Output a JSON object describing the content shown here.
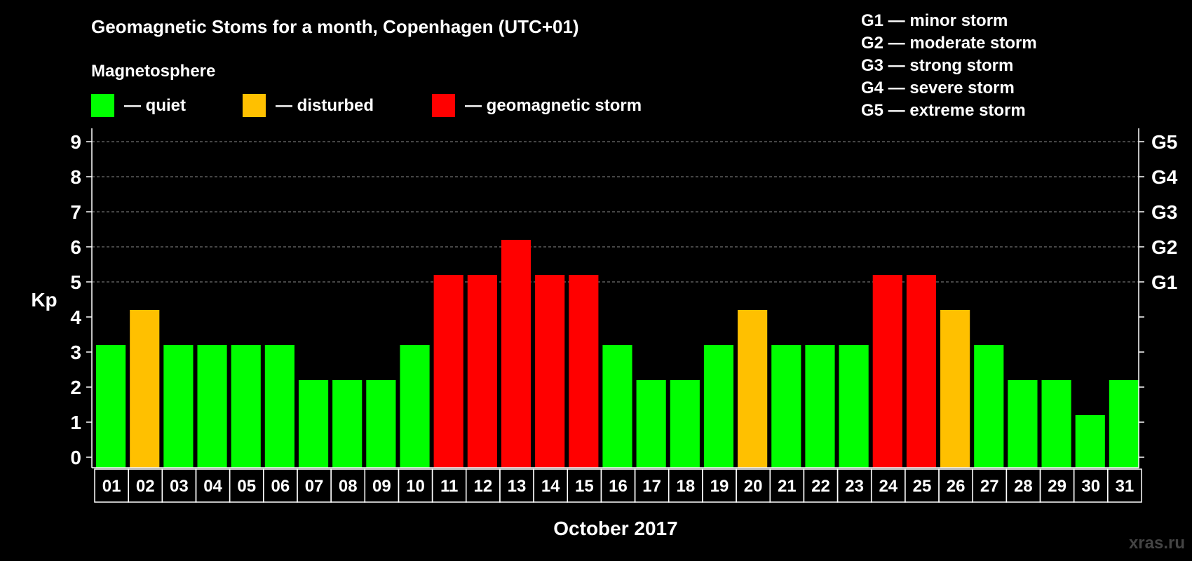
{
  "chart_data": {
    "type": "bar",
    "title": "Geomagnetic Stoms for a month, Copenhagen (UTC+01)",
    "legend_title": "Magnetosphere",
    "legend": [
      {
        "label": "— quiet",
        "color": "#00ff00",
        "key": "quiet"
      },
      {
        "label": "— disturbed",
        "color": "#ffc000",
        "key": "disturbed"
      },
      {
        "label": "— geomagnetic storm",
        "color": "#ff0000",
        "key": "storm"
      }
    ],
    "storm_scale": [
      "G1 — minor storm",
      "G2 — moderate storm",
      "G3 — strong storm",
      "G4 — severe storm",
      "G5 — extreme storm"
    ],
    "ylabel": "Kp",
    "xlabel": "October 2017",
    "ylim": [
      0,
      9
    ],
    "y_ticks": [
      0,
      1,
      2,
      3,
      4,
      5,
      6,
      7,
      8,
      9
    ],
    "right_ticks": [
      {
        "value": 5,
        "label": "G1"
      },
      {
        "value": 6,
        "label": "G2"
      },
      {
        "value": 7,
        "label": "G3"
      },
      {
        "value": 8,
        "label": "G4"
      },
      {
        "value": 9,
        "label": "G5"
      }
    ],
    "grid": "dashed, at Kp 5–9",
    "categories": [
      "01",
      "02",
      "03",
      "04",
      "05",
      "06",
      "07",
      "08",
      "09",
      "10",
      "11",
      "12",
      "13",
      "14",
      "15",
      "16",
      "17",
      "18",
      "19",
      "20",
      "21",
      "22",
      "23",
      "24",
      "25",
      "26",
      "27",
      "28",
      "29",
      "30",
      "31"
    ],
    "values": [
      3,
      4,
      3,
      3,
      3,
      3,
      2,
      2,
      2,
      3,
      5,
      5,
      6,
      5,
      5,
      3,
      2,
      2,
      3,
      4,
      3,
      3,
      3,
      5,
      5,
      4,
      3,
      2,
      2,
      1,
      2
    ],
    "status": [
      "quiet",
      "disturbed",
      "quiet",
      "quiet",
      "quiet",
      "quiet",
      "quiet",
      "quiet",
      "quiet",
      "quiet",
      "storm",
      "storm",
      "storm",
      "storm",
      "storm",
      "quiet",
      "quiet",
      "quiet",
      "quiet",
      "disturbed",
      "quiet",
      "quiet",
      "quiet",
      "storm",
      "storm",
      "disturbed",
      "quiet",
      "quiet",
      "quiet",
      "quiet",
      "quiet"
    ]
  },
  "watermark": "xras.ru"
}
